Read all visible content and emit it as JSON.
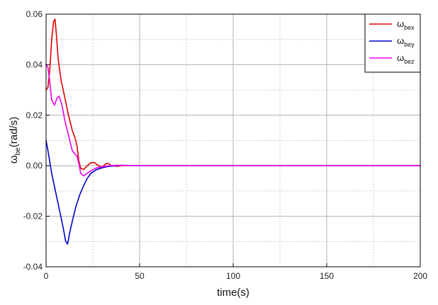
{
  "chart_data": {
    "type": "line",
    "xlabel": "time(s)",
    "ylabel_main": "ω",
    "ylabel_sub": "be",
    "ylabel_unit": "(rad/s)",
    "xlim": [
      0,
      200
    ],
    "ylim": [
      -0.04,
      0.06
    ],
    "xticks": [
      0,
      50,
      100,
      150,
      200
    ],
    "yticks": [
      -0.04,
      -0.02,
      0.0,
      0.02,
      0.04,
      0.06
    ],
    "xtick_labels": [
      "0",
      "50",
      "100",
      "150",
      "200"
    ],
    "ytick_labels": [
      "-0.04",
      "-0.02",
      "0.00",
      "0.02",
      "0.04",
      "0.06"
    ],
    "grid": true,
    "legend_position": "top-right",
    "series": [
      {
        "name_main": "ω",
        "name_sub": "bex",
        "color": "#e00000",
        "points": [
          [
            0,
            0.03
          ],
          [
            1,
            0.031
          ],
          [
            2,
            0.038
          ],
          [
            3,
            0.05
          ],
          [
            4,
            0.057
          ],
          [
            4.8,
            0.058
          ],
          [
            5.5,
            0.052
          ],
          [
            6.5,
            0.042
          ],
          [
            8,
            0.034
          ],
          [
            10,
            0.027
          ],
          [
            12,
            0.02
          ],
          [
            14,
            0.014
          ],
          [
            15.5,
            0.011
          ],
          [
            16.5,
            0.008
          ],
          [
            17.5,
            0.002
          ],
          [
            18.5,
            -0.001
          ],
          [
            20,
            -0.0015
          ],
          [
            22,
            0.0
          ],
          [
            24,
            0.0012
          ],
          [
            26,
            0.0012
          ],
          [
            28,
            0.0
          ],
          [
            30,
            -0.0005
          ],
          [
            32,
            0.0008
          ],
          [
            33,
            0.001
          ],
          [
            35,
            0.0
          ],
          [
            38,
            -0.0002
          ],
          [
            42,
            0.0001
          ],
          [
            50,
            0.0
          ],
          [
            200,
            0.0
          ]
        ]
      },
      {
        "name_main": "ω",
        "name_sub": "bey",
        "color": "#0000cc",
        "points": [
          [
            0,
            0.01
          ],
          [
            1,
            0.006
          ],
          [
            3,
            -0.003
          ],
          [
            5,
            -0.01
          ],
          [
            7,
            -0.017
          ],
          [
            9,
            -0.024
          ],
          [
            10.5,
            -0.03
          ],
          [
            11.5,
            -0.031
          ],
          [
            12.5,
            -0.027
          ],
          [
            14,
            -0.022
          ],
          [
            16,
            -0.016
          ],
          [
            18,
            -0.0115
          ],
          [
            20,
            -0.008
          ],
          [
            22,
            -0.005
          ],
          [
            24,
            -0.003
          ],
          [
            27,
            -0.0015
          ],
          [
            30,
            -0.0008
          ],
          [
            33,
            -0.0003
          ],
          [
            37,
            0.0
          ],
          [
            40,
            0.0002
          ],
          [
            45,
            0.0001
          ],
          [
            50,
            0.0
          ],
          [
            200,
            0.0
          ]
        ]
      },
      {
        "name_main": "ω",
        "name_sub": "bez",
        "color": "#ee00ee",
        "points": [
          [
            0,
            0.04
          ],
          [
            1,
            0.039
          ],
          [
            2,
            0.033
          ],
          [
            3,
            0.026
          ],
          [
            4.5,
            0.024
          ],
          [
            6,
            0.027
          ],
          [
            7,
            0.0275
          ],
          [
            8.5,
            0.024
          ],
          [
            10,
            0.018
          ],
          [
            12,
            0.012
          ],
          [
            14,
            0.006
          ],
          [
            15.5,
            0.0045
          ],
          [
            16.5,
            0.004
          ],
          [
            17.5,
            0.001
          ],
          [
            18.5,
            -0.003
          ],
          [
            20,
            -0.004
          ],
          [
            22,
            -0.003
          ],
          [
            24,
            -0.002
          ],
          [
            27,
            -0.0008
          ],
          [
            30,
            -0.0004
          ],
          [
            34,
            0.0
          ],
          [
            38,
            0.0002
          ],
          [
            42,
            0.0001
          ],
          [
            50,
            0.0
          ],
          [
            200,
            0.0
          ]
        ]
      }
    ]
  }
}
